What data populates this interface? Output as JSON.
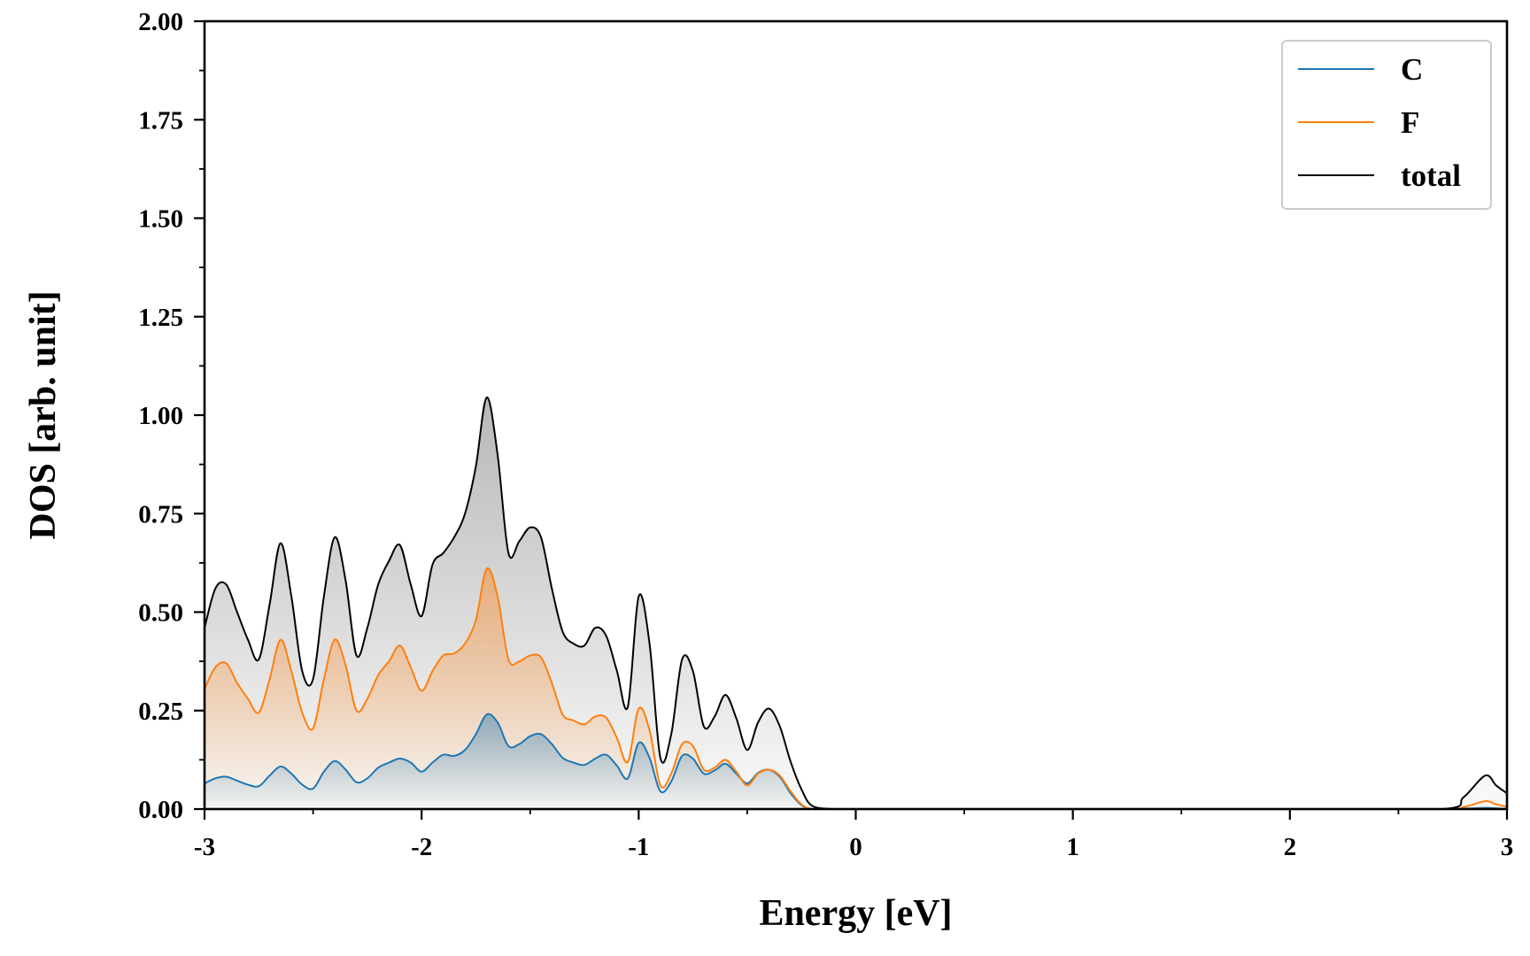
{
  "chart_data": {
    "type": "area",
    "title": "",
    "xlabel": "Energy [eV]",
    "ylabel": "DOS [arb. unit]",
    "xlim": [
      -3,
      3
    ],
    "ylim": [
      0,
      2.0
    ],
    "x_ticks": [
      -3,
      -2,
      -1,
      0,
      1,
      2,
      3
    ],
    "x_tick_labels": [
      "-3",
      "-2",
      "-1",
      "0",
      "1",
      "2",
      "3"
    ],
    "y_ticks": [
      0,
      0.25,
      0.5,
      0.75,
      1.0,
      1.25,
      1.5,
      1.75,
      2.0
    ],
    "y_tick_labels": [
      "0.00",
      "0.25",
      "0.50",
      "0.75",
      "1.00",
      "1.25",
      "1.50",
      "1.75",
      "2.00"
    ],
    "grid": false,
    "legend_position": "top-right",
    "series": [
      {
        "name": "C",
        "color": "#1f77b4",
        "points": [
          [
            -3.0,
            0.065
          ],
          [
            -2.95,
            0.078
          ],
          [
            -2.9,
            0.082
          ],
          [
            -2.85,
            0.072
          ],
          [
            -2.8,
            0.062
          ],
          [
            -2.75,
            0.058
          ],
          [
            -2.7,
            0.085
          ],
          [
            -2.65,
            0.108
          ],
          [
            -2.6,
            0.09
          ],
          [
            -2.55,
            0.062
          ],
          [
            -2.5,
            0.052
          ],
          [
            -2.45,
            0.095
          ],
          [
            -2.4,
            0.122
          ],
          [
            -2.35,
            0.1
          ],
          [
            -2.3,
            0.068
          ],
          [
            -2.25,
            0.078
          ],
          [
            -2.2,
            0.105
          ],
          [
            -2.15,
            0.118
          ],
          [
            -2.1,
            0.128
          ],
          [
            -2.05,
            0.118
          ],
          [
            -2.0,
            0.095
          ],
          [
            -1.95,
            0.118
          ],
          [
            -1.9,
            0.138
          ],
          [
            -1.85,
            0.135
          ],
          [
            -1.8,
            0.15
          ],
          [
            -1.75,
            0.19
          ],
          [
            -1.7,
            0.24
          ],
          [
            -1.65,
            0.22
          ],
          [
            -1.6,
            0.16
          ],
          [
            -1.55,
            0.165
          ],
          [
            -1.5,
            0.185
          ],
          [
            -1.45,
            0.19
          ],
          [
            -1.4,
            0.165
          ],
          [
            -1.35,
            0.13
          ],
          [
            -1.3,
            0.118
          ],
          [
            -1.25,
            0.112
          ],
          [
            -1.2,
            0.128
          ],
          [
            -1.15,
            0.138
          ],
          [
            -1.1,
            0.11
          ],
          [
            -1.05,
            0.078
          ],
          [
            -1.0,
            0.168
          ],
          [
            -0.95,
            0.13
          ],
          [
            -0.9,
            0.045
          ],
          [
            -0.85,
            0.07
          ],
          [
            -0.8,
            0.135
          ],
          [
            -0.75,
            0.128
          ],
          [
            -0.7,
            0.09
          ],
          [
            -0.65,
            0.098
          ],
          [
            -0.6,
            0.115
          ],
          [
            -0.55,
            0.09
          ],
          [
            -0.5,
            0.065
          ],
          [
            -0.45,
            0.092
          ],
          [
            -0.4,
            0.1
          ],
          [
            -0.35,
            0.082
          ],
          [
            -0.3,
            0.04
          ],
          [
            -0.25,
            0.01
          ],
          [
            -0.2,
            0.0
          ],
          [
            -0.1,
            0.0
          ],
          [
            0.0,
            0.0
          ],
          [
            1.0,
            0.0
          ],
          [
            2.0,
            0.0
          ],
          [
            2.7,
            0.0
          ],
          [
            2.8,
            0.001
          ],
          [
            2.9,
            0.003
          ],
          [
            2.95,
            0.002
          ],
          [
            3.0,
            0.0
          ]
        ]
      },
      {
        "name": "F",
        "color": "#ff7f0e",
        "points": [
          [
            -3.0,
            0.305
          ],
          [
            -2.95,
            0.36
          ],
          [
            -2.9,
            0.37
          ],
          [
            -2.85,
            0.32
          ],
          [
            -2.8,
            0.28
          ],
          [
            -2.75,
            0.245
          ],
          [
            -2.7,
            0.33
          ],
          [
            -2.65,
            0.43
          ],
          [
            -2.6,
            0.35
          ],
          [
            -2.55,
            0.245
          ],
          [
            -2.5,
            0.205
          ],
          [
            -2.45,
            0.33
          ],
          [
            -2.4,
            0.43
          ],
          [
            -2.35,
            0.365
          ],
          [
            -2.3,
            0.25
          ],
          [
            -2.25,
            0.28
          ],
          [
            -2.2,
            0.34
          ],
          [
            -2.15,
            0.375
          ],
          [
            -2.1,
            0.415
          ],
          [
            -2.05,
            0.36
          ],
          [
            -2.0,
            0.3
          ],
          [
            -1.95,
            0.35
          ],
          [
            -1.9,
            0.39
          ],
          [
            -1.85,
            0.395
          ],
          [
            -1.8,
            0.42
          ],
          [
            -1.75,
            0.48
          ],
          [
            -1.7,
            0.61
          ],
          [
            -1.65,
            0.54
          ],
          [
            -1.6,
            0.38
          ],
          [
            -1.55,
            0.375
          ],
          [
            -1.5,
            0.39
          ],
          [
            -1.45,
            0.385
          ],
          [
            -1.4,
            0.32
          ],
          [
            -1.35,
            0.24
          ],
          [
            -1.3,
            0.225
          ],
          [
            -1.25,
            0.215
          ],
          [
            -1.2,
            0.235
          ],
          [
            -1.15,
            0.232
          ],
          [
            -1.1,
            0.18
          ],
          [
            -1.05,
            0.12
          ],
          [
            -1.0,
            0.255
          ],
          [
            -0.95,
            0.2
          ],
          [
            -0.9,
            0.06
          ],
          [
            -0.85,
            0.09
          ],
          [
            -0.8,
            0.165
          ],
          [
            -0.75,
            0.16
          ],
          [
            -0.7,
            0.1
          ],
          [
            -0.65,
            0.105
          ],
          [
            -0.6,
            0.125
          ],
          [
            -0.55,
            0.095
          ],
          [
            -0.5,
            0.06
          ],
          [
            -0.45,
            0.09
          ],
          [
            -0.4,
            0.1
          ],
          [
            -0.35,
            0.085
          ],
          [
            -0.3,
            0.045
          ],
          [
            -0.25,
            0.012
          ],
          [
            -0.2,
            0.0
          ],
          [
            -0.1,
            0.0
          ],
          [
            0.0,
            0.0
          ],
          [
            1.0,
            0.0
          ],
          [
            2.0,
            0.0
          ],
          [
            2.7,
            0.0
          ],
          [
            2.8,
            0.005
          ],
          [
            2.9,
            0.02
          ],
          [
            2.95,
            0.012
          ],
          [
            3.0,
            0.006
          ]
        ]
      },
      {
        "name": "total",
        "color": "#000000",
        "points": [
          [
            -3.0,
            0.46
          ],
          [
            -2.95,
            0.56
          ],
          [
            -2.9,
            0.57
          ],
          [
            -2.85,
            0.5
          ],
          [
            -2.8,
            0.43
          ],
          [
            -2.75,
            0.38
          ],
          [
            -2.7,
            0.52
          ],
          [
            -2.65,
            0.675
          ],
          [
            -2.6,
            0.54
          ],
          [
            -2.55,
            0.35
          ],
          [
            -2.5,
            0.33
          ],
          [
            -2.45,
            0.54
          ],
          [
            -2.4,
            0.69
          ],
          [
            -2.35,
            0.58
          ],
          [
            -2.3,
            0.39
          ],
          [
            -2.25,
            0.46
          ],
          [
            -2.2,
            0.57
          ],
          [
            -2.15,
            0.63
          ],
          [
            -2.1,
            0.67
          ],
          [
            -2.05,
            0.57
          ],
          [
            -2.0,
            0.49
          ],
          [
            -1.95,
            0.62
          ],
          [
            -1.9,
            0.65
          ],
          [
            -1.85,
            0.69
          ],
          [
            -1.8,
            0.75
          ],
          [
            -1.75,
            0.87
          ],
          [
            -1.7,
            1.045
          ],
          [
            -1.65,
            0.9
          ],
          [
            -1.6,
            0.65
          ],
          [
            -1.55,
            0.68
          ],
          [
            -1.5,
            0.715
          ],
          [
            -1.45,
            0.69
          ],
          [
            -1.4,
            0.56
          ],
          [
            -1.35,
            0.45
          ],
          [
            -1.3,
            0.42
          ],
          [
            -1.25,
            0.415
          ],
          [
            -1.2,
            0.46
          ],
          [
            -1.15,
            0.44
          ],
          [
            -1.1,
            0.35
          ],
          [
            -1.05,
            0.26
          ],
          [
            -1.0,
            0.54
          ],
          [
            -0.95,
            0.42
          ],
          [
            -0.9,
            0.13
          ],
          [
            -0.85,
            0.19
          ],
          [
            -0.8,
            0.38
          ],
          [
            -0.75,
            0.35
          ],
          [
            -0.7,
            0.21
          ],
          [
            -0.65,
            0.235
          ],
          [
            -0.6,
            0.29
          ],
          [
            -0.55,
            0.23
          ],
          [
            -0.5,
            0.15
          ],
          [
            -0.45,
            0.22
          ],
          [
            -0.4,
            0.255
          ],
          [
            -0.35,
            0.21
          ],
          [
            -0.3,
            0.12
          ],
          [
            -0.25,
            0.05
          ],
          [
            -0.2,
            0.008
          ],
          [
            -0.1,
            0.0
          ],
          [
            0.0,
            0.0
          ],
          [
            1.0,
            0.0
          ],
          [
            2.0,
            0.0
          ],
          [
            2.7,
            0.0
          ],
          [
            2.8,
            0.03
          ],
          [
            2.9,
            0.085
          ],
          [
            2.95,
            0.06
          ],
          [
            3.0,
            0.04
          ]
        ]
      }
    ]
  }
}
